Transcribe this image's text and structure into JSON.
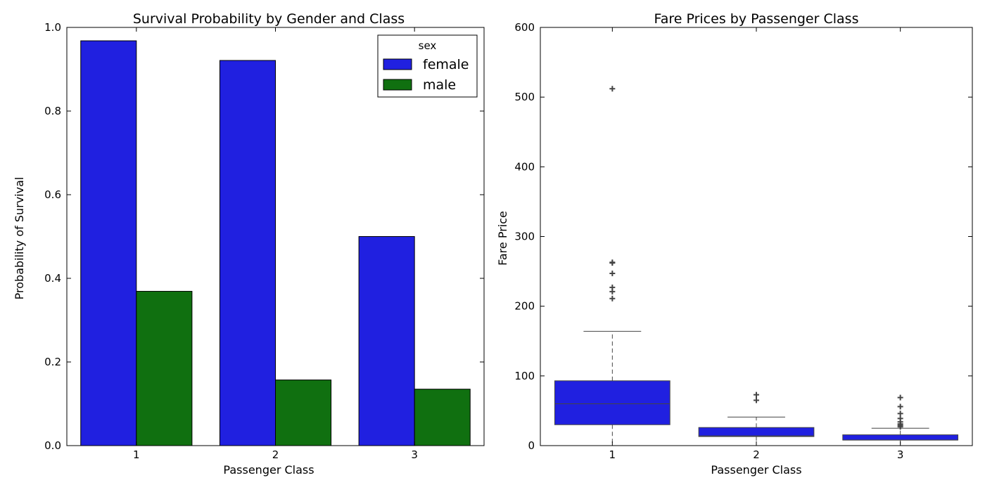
{
  "chart_data": [
    {
      "type": "bar",
      "title": "Survival Probability by Gender and Class",
      "xlabel": "Passenger Class",
      "ylabel": "Probability of Survival",
      "categories": [
        "1",
        "2",
        "3"
      ],
      "ylim": [
        0.0,
        1.0
      ],
      "yticks": [
        "0.0",
        "0.2",
        "0.4",
        "0.6",
        "0.8",
        "1.0"
      ],
      "legend": {
        "title": "sex",
        "position": "top-right"
      },
      "series": [
        {
          "name": "female",
          "color": "#2020e0",
          "values": [
            0.968,
            0.921,
            0.5
          ]
        },
        {
          "name": "male",
          "color": "#107010",
          "values": [
            0.369,
            0.157,
            0.135
          ]
        }
      ]
    },
    {
      "type": "box",
      "title": "Fare Prices by Passenger Class",
      "xlabel": "Passenger Class",
      "ylabel": "Fare Price",
      "categories": [
        "1",
        "2",
        "3"
      ],
      "ylim": [
        0,
        600
      ],
      "yticks": [
        "0",
        "100",
        "200",
        "300",
        "400",
        "500",
        "600"
      ],
      "color": "#2020e0",
      "boxes": [
        {
          "category": "1",
          "whisker_low": 0,
          "q1": 30,
          "median": 60,
          "q3": 93,
          "whisker_high": 164,
          "outliers": [
            211,
            221,
            227,
            247,
            262,
            263,
            512
          ]
        },
        {
          "category": "2",
          "whisker_low": 0,
          "q1": 13,
          "median": 14,
          "q3": 26,
          "whisker_high": 41,
          "outliers": [
            65,
            73
          ]
        },
        {
          "category": "3",
          "whisker_low": 0,
          "q1": 8,
          "median": 8,
          "q3": 15.5,
          "whisker_high": 25,
          "outliers": [
            27,
            29,
            31,
            34,
            39,
            46,
            56,
            69
          ]
        }
      ]
    }
  ]
}
